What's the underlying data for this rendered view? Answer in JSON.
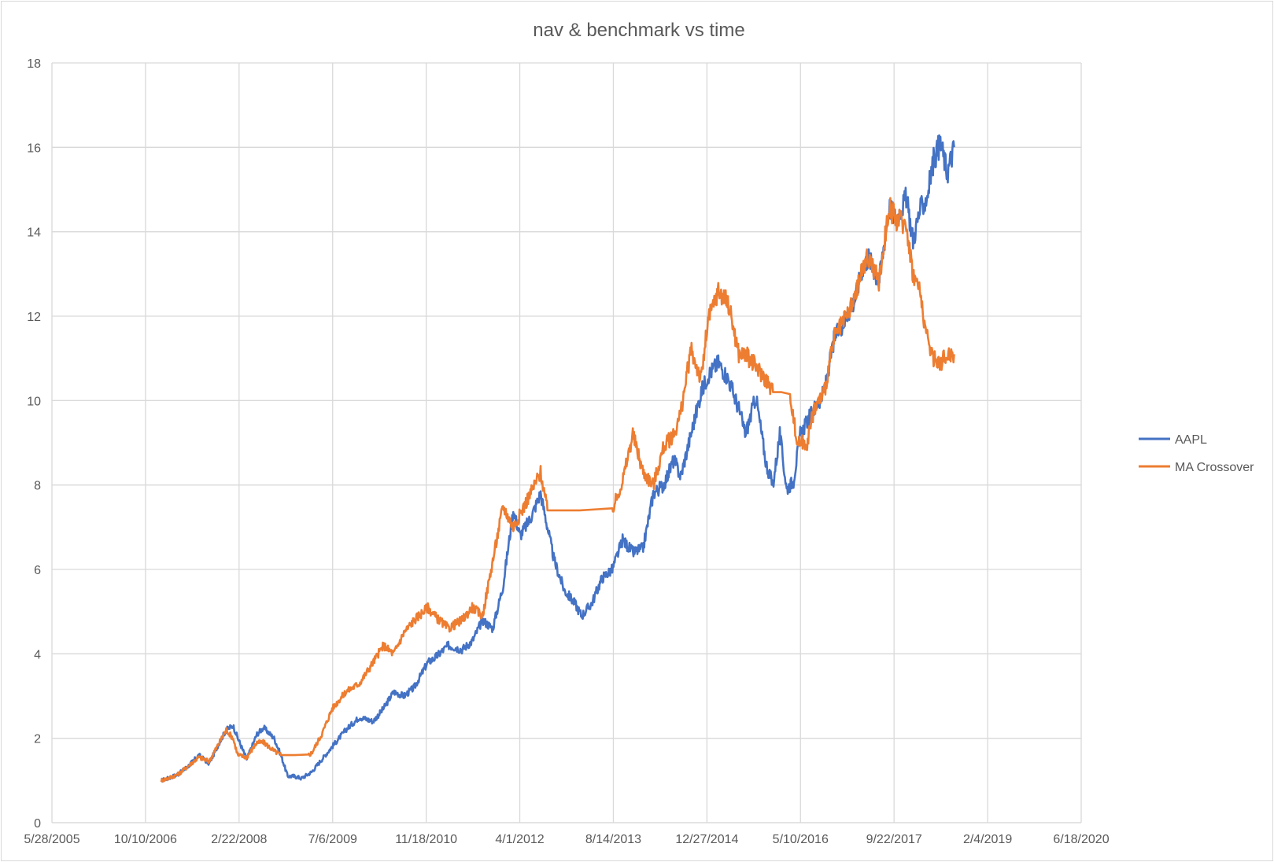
{
  "chart_data": {
    "type": "line",
    "title": "nav & benchmark vs time",
    "xlabel": "",
    "ylabel": "",
    "ylim": [
      0,
      18
    ],
    "yticks": [
      0,
      2,
      4,
      6,
      8,
      10,
      12,
      14,
      16,
      18
    ],
    "xticks": [
      "5/28/2005",
      "10/10/2006",
      "2/22/2008",
      "7/6/2009",
      "11/18/2010",
      "4/1/2012",
      "8/14/2013",
      "12/27/2014",
      "5/10/2016",
      "9/22/2017",
      "2/4/2019",
      "6/18/2020"
    ],
    "x_range_years": [
      2005.4,
      2020.46
    ],
    "grid": true,
    "legend_position": "right",
    "series": [
      {
        "name": "AAPL",
        "color": "#4472c4",
        "x": [
          2007.0,
          2007.1,
          2007.25,
          2007.4,
          2007.55,
          2007.7,
          2007.85,
          2007.95,
          2008.05,
          2008.12,
          2008.25,
          2008.4,
          2008.5,
          2008.65,
          2008.75,
          2008.85,
          2008.95,
          2009.05,
          2009.2,
          2009.35,
          2009.5,
          2009.7,
          2009.9,
          2010.1,
          2010.25,
          2010.4,
          2010.55,
          2010.7,
          2010.9,
          2011.0,
          2011.2,
          2011.4,
          2011.55,
          2011.7,
          2011.85,
          2012.0,
          2012.15,
          2012.25,
          2012.4,
          2012.55,
          2012.65,
          2012.75,
          2012.9,
          2013.05,
          2013.15,
          2013.3,
          2013.45,
          2013.6,
          2013.75,
          2013.9,
          2014.05,
          2014.2,
          2014.35,
          2014.5,
          2014.6,
          2014.75,
          2014.9,
          2015.0,
          2015.15,
          2015.3,
          2015.45,
          2015.55,
          2015.7,
          2015.85,
          2015.95,
          2016.05,
          2016.15,
          2016.25,
          2016.35,
          2016.45,
          2016.55,
          2016.7,
          2016.85,
          2017.0,
          2017.15,
          2017.25,
          2017.35,
          2017.5,
          2017.65,
          2017.75,
          2017.9,
          2018.0,
          2018.1,
          2018.2,
          2018.3,
          2018.4,
          2018.5,
          2018.6
        ],
        "y": [
          1.0,
          1.05,
          1.15,
          1.35,
          1.6,
          1.4,
          1.9,
          2.2,
          2.3,
          2.0,
          1.5,
          2.1,
          2.25,
          2.0,
          1.6,
          1.1,
          1.1,
          1.05,
          1.2,
          1.5,
          1.8,
          2.2,
          2.5,
          2.4,
          2.7,
          3.1,
          3.0,
          3.2,
          3.8,
          3.9,
          4.2,
          4.1,
          4.3,
          4.8,
          4.6,
          5.6,
          7.4,
          6.8,
          7.2,
          7.8,
          7.0,
          6.2,
          5.5,
          5.2,
          4.9,
          5.2,
          5.8,
          6.0,
          6.7,
          6.4,
          6.5,
          7.8,
          8.0,
          8.6,
          8.2,
          9.2,
          10.2,
          10.6,
          10.9,
          10.5,
          9.8,
          9.2,
          10.1,
          8.5,
          8.0,
          9.2,
          7.9,
          8.1,
          9.2,
          9.5,
          9.8,
          10.2,
          11.5,
          11.9,
          12.4,
          13.1,
          13.4,
          12.8,
          14.6,
          14.3,
          14.8,
          13.8,
          14.5,
          14.8,
          15.7,
          16.1,
          15.4,
          16.0
        ]
      },
      {
        "name": "MA Crossover",
        "color": "#ed7d31",
        "x": [
          2007.0,
          2007.1,
          2007.25,
          2007.4,
          2007.55,
          2007.7,
          2007.85,
          2007.95,
          2008.05,
          2008.12,
          2008.25,
          2008.4,
          2008.5,
          2008.65,
          2008.75,
          2009.15,
          2009.2,
          2009.35,
          2009.5,
          2009.7,
          2009.9,
          2010.1,
          2010.25,
          2010.4,
          2010.55,
          2010.7,
          2010.9,
          2011.0,
          2011.2,
          2011.4,
          2011.55,
          2011.7,
          2011.85,
          2012.0,
          2012.15,
          2012.25,
          2012.4,
          2012.55,
          2012.65,
          2013.6,
          2013.75,
          2013.9,
          2014.05,
          2014.2,
          2014.35,
          2014.5,
          2014.6,
          2014.75,
          2014.9,
          2015.0,
          2015.15,
          2015.3,
          2015.45,
          2015.55,
          2015.85,
          2015.95,
          2016.2,
          2016.3,
          2016.45,
          2016.55,
          2016.7,
          2016.85,
          2017.0,
          2017.15,
          2017.25,
          2017.35,
          2017.5,
          2017.65,
          2017.75,
          2017.9,
          2018.0,
          2018.1,
          2018.2,
          2018.3,
          2018.4,
          2018.5,
          2018.6
        ],
        "y": [
          1.0,
          1.05,
          1.15,
          1.35,
          1.55,
          1.45,
          1.9,
          2.2,
          2.0,
          1.6,
          1.55,
          1.9,
          1.9,
          1.7,
          1.6,
          1.6,
          1.65,
          2.1,
          2.7,
          3.1,
          3.3,
          3.8,
          4.2,
          4.0,
          4.5,
          4.8,
          5.1,
          4.9,
          4.6,
          4.8,
          5.1,
          4.9,
          6.2,
          7.5,
          7.0,
          7.3,
          7.8,
          8.3,
          7.4,
          7.4,
          8.1,
          9.2,
          8.3,
          8.0,
          8.9,
          9.2,
          9.7,
          11.2,
          10.5,
          11.9,
          12.6,
          12.3,
          11.1,
          11.1,
          10.5,
          10.2,
          10.2,
          9.0,
          9.0,
          9.8,
          10.2,
          11.5,
          11.9,
          12.4,
          13.1,
          13.4,
          12.8,
          14.6,
          14.3,
          14.2,
          13.0,
          12.6,
          11.5,
          11.0,
          10.9,
          11.1,
          11.1
        ]
      }
    ]
  }
}
